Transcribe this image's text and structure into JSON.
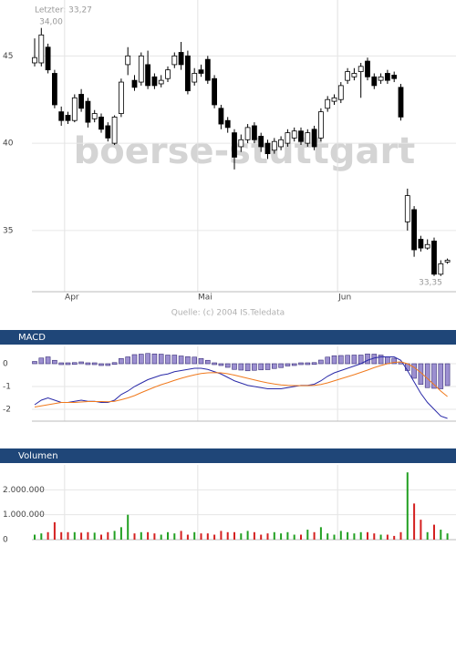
{
  "chart_data": [
    {
      "type": "candlestick",
      "last_label": "Letzter: 33,27",
      "high_label": "34,00",
      "low_label": "33,35",
      "watermark": "boerse-stuttgart",
      "source": "Quelle: (c) 2004 IS.Teledata",
      "categories": [
        null,
        null,
        null,
        null,
        null,
        "Apr",
        null,
        null,
        null,
        null,
        null,
        null,
        null,
        null,
        null,
        null,
        null,
        null,
        null,
        null,
        null,
        null,
        null,
        null,
        null,
        "Mai",
        null,
        null,
        null,
        null,
        null,
        null,
        null,
        null,
        null,
        null,
        null,
        null,
        null,
        null,
        null,
        null,
        null,
        null,
        null,
        null,
        "Jun",
        null,
        null,
        null,
        null,
        null,
        null,
        null,
        null,
        null,
        null,
        null,
        null,
        null,
        null,
        null,
        null
      ],
      "open": [
        44.6,
        44.6,
        45.5,
        44.0,
        41.8,
        41.6,
        41.3,
        42.8,
        42.4,
        41.4,
        41.5,
        41.0,
        40.0,
        41.7,
        44.5,
        43.6,
        43.5,
        44.5,
        43.8,
        43.4,
        43.7,
        44.5,
        45.2,
        45.0,
        43.5,
        44.2,
        44.8,
        43.7,
        42.0,
        41.3,
        40.6,
        39.8,
        40.2,
        41.0,
        40.4,
        40.0,
        39.6,
        39.8,
        40.0,
        40.3,
        40.7,
        40.0,
        40.8,
        40.3,
        42.0,
        42.4,
        42.5,
        43.6,
        43.8,
        44.1,
        44.7,
        43.8,
        43.6,
        44.0,
        43.9,
        43.2,
        35.5,
        36.2,
        34.5,
        34.0,
        34.4,
        32.5,
        33.2
      ],
      "high": [
        46.0,
        46.6,
        45.7,
        44.2,
        42.1,
        41.8,
        42.8,
        43.1,
        42.6,
        41.9,
        41.7,
        41.2,
        41.6,
        43.7,
        45.5,
        43.9,
        45.2,
        45.3,
        44.0,
        43.9,
        44.4,
        45.2,
        45.8,
        45.3,
        44.3,
        44.5,
        45.0,
        43.9,
        42.2,
        41.5,
        40.8,
        40.5,
        41.1,
        41.2,
        40.6,
        40.2,
        40.3,
        40.4,
        40.8,
        40.9,
        40.9,
        40.8,
        41.0,
        42.0,
        42.7,
        42.8,
        43.5,
        44.3,
        44.3,
        44.6,
        44.9,
        44.0,
        44.0,
        44.2,
        44.1,
        43.4,
        37.4,
        36.4,
        34.7,
        34.5,
        34.6,
        33.3,
        33.4
      ],
      "low": [
        44.4,
        44.4,
        44.0,
        42.0,
        41.0,
        41.1,
        41.2,
        41.8,
        40.9,
        41.2,
        40.6,
        40.1,
        39.9,
        41.5,
        43.9,
        43.0,
        43.3,
        43.1,
        43.1,
        43.2,
        43.5,
        44.3,
        44.2,
        42.8,
        43.3,
        43.8,
        43.4,
        42.0,
        40.8,
        40.6,
        38.5,
        39.5,
        40.0,
        40.0,
        39.5,
        39.1,
        39.4,
        39.6,
        39.8,
        40.1,
        39.9,
        39.8,
        39.6,
        40.1,
        41.8,
        42.2,
        42.3,
        43.4,
        43.6,
        42.6,
        43.6,
        43.1,
        43.4,
        43.4,
        43.5,
        41.3,
        35.0,
        33.5,
        33.8,
        33.9,
        32.4,
        32.4,
        33.1
      ],
      "close": [
        44.9,
        46.2,
        44.2,
        42.2,
        41.3,
        41.3,
        42.6,
        42.0,
        41.2,
        41.7,
        40.8,
        40.3,
        41.5,
        43.5,
        45.0,
        43.2,
        45.0,
        43.3,
        43.3,
        43.6,
        44.2,
        45.0,
        44.5,
        43.0,
        44.0,
        44.0,
        43.6,
        42.2,
        41.1,
        40.9,
        39.2,
        40.2,
        40.9,
        40.2,
        39.8,
        39.4,
        40.1,
        40.2,
        40.6,
        40.7,
        40.1,
        40.6,
        39.8,
        41.8,
        42.5,
        42.6,
        43.3,
        44.1,
        44.0,
        44.4,
        43.8,
        43.3,
        43.8,
        43.6,
        43.7,
        41.5,
        37.0,
        33.9,
        34.0,
        34.2,
        32.5,
        33.1,
        33.3
      ],
      "up_color": "#ffffff",
      "down_color": "#000000",
      "ylim": [
        31.5,
        48.2
      ],
      "yticks": [
        35,
        40,
        45
      ],
      "grid": true
    },
    {
      "type": "macd",
      "title": "MACD",
      "series": [
        {
          "kind": "bar",
          "color": "#9c8fd0",
          "values": [
            0.1,
            0.25,
            0.3,
            0.15,
            0,
            0,
            0.05,
            0.08,
            0.01,
            0.01,
            -0.04,
            -0.03,
            0.05,
            0.23,
            0.3,
            0.4,
            0.42,
            0.45,
            0.43,
            0.42,
            0.38,
            0.38,
            0.34,
            0.31,
            0.29,
            0.23,
            0.15,
            0.04,
            -0.05,
            -0.16,
            -0.25,
            -0.28,
            -0.31,
            -0.29,
            -0.27,
            -0.26,
            -0.21,
            -0.17,
            -0.1,
            -0.04,
            0.01,
            0.01,
            0.05,
            0.16,
            0.29,
            0.35,
            0.36,
            0.37,
            0.38,
            0.38,
            0.43,
            0.42,
            0.38,
            0.3,
            0.24,
            0.07,
            -0.3,
            -0.64,
            -0.91,
            -1.05,
            -1.08,
            -1.1,
            -0.96
          ]
        },
        {
          "kind": "line",
          "color": "#2a2aa8",
          "values": [
            -1.8,
            -1.6,
            -1.5,
            -1.6,
            -1.7,
            -1.7,
            -1.65,
            -1.6,
            -1.65,
            -1.65,
            -1.7,
            -1.7,
            -1.6,
            -1.35,
            -1.2,
            -1.0,
            -0.85,
            -0.7,
            -0.6,
            -0.5,
            -0.45,
            -0.35,
            -0.3,
            -0.25,
            -0.2,
            -0.2,
            -0.25,
            -0.35,
            -0.45,
            -0.6,
            -0.75,
            -0.85,
            -0.95,
            -1.0,
            -1.05,
            -1.1,
            -1.1,
            -1.1,
            -1.05,
            -1.0,
            -0.95,
            -0.95,
            -0.9,
            -0.75,
            -0.55,
            -0.4,
            -0.3,
            -0.2,
            -0.1,
            0.0,
            0.15,
            0.25,
            0.3,
            0.3,
            0.3,
            0.15,
            -0.3,
            -0.8,
            -1.3,
            -1.7,
            -2.0,
            -2.3,
            -2.4
          ]
        },
        {
          "kind": "line",
          "color": "#f07a1e",
          "values": [
            -1.9,
            -1.85,
            -1.8,
            -1.75,
            -1.7,
            -1.7,
            -1.7,
            -1.68,
            -1.66,
            -1.66,
            -1.66,
            -1.67,
            -1.65,
            -1.58,
            -1.5,
            -1.4,
            -1.27,
            -1.15,
            -1.03,
            -0.92,
            -0.83,
            -0.73,
            -0.64,
            -0.56,
            -0.49,
            -0.43,
            -0.4,
            -0.39,
            -0.4,
            -0.44,
            -0.5,
            -0.57,
            -0.64,
            -0.71,
            -0.78,
            -0.84,
            -0.89,
            -0.93,
            -0.95,
            -0.96,
            -0.96,
            -0.96,
            -0.95,
            -0.91,
            -0.84,
            -0.75,
            -0.66,
            -0.57,
            -0.48,
            -0.38,
            -0.28,
            -0.17,
            -0.08,
            0.0,
            0.06,
            0.08,
            0.0,
            -0.16,
            -0.39,
            -0.65,
            -0.92,
            -1.2,
            -1.44
          ]
        }
      ],
      "ylim": [
        -2.52,
        0.76
      ],
      "yticks": [
        0,
        -1,
        -2
      ],
      "grid": true
    },
    {
      "type": "volume",
      "title": "Volumen",
      "values": [
        200000,
        250000,
        300000,
        700000,
        300000,
        300000,
        300000,
        280000,
        300000,
        280000,
        200000,
        300000,
        350000,
        500000,
        1000000,
        250000,
        300000,
        300000,
        250000,
        200000,
        300000,
        250000,
        350000,
        200000,
        300000,
        250000,
        250000,
        200000,
        350000,
        300000,
        300000,
        250000,
        350000,
        300000,
        200000,
        250000,
        300000,
        250000,
        300000,
        200000,
        200000,
        400000,
        300000,
        500000,
        250000,
        200000,
        350000,
        300000,
        250000,
        300000,
        300000,
        250000,
        200000,
        200000,
        150000,
        300000,
        2700000,
        1450000,
        800000,
        300000,
        600000,
        400000,
        250000
      ],
      "up_color": "#22a022",
      "down_color": "#d42020",
      "ylim": [
        0,
        3000000
      ],
      "yticks": [
        0,
        {
          "value": 1000000,
          "label": "1.000.000"
        },
        {
          "value": 2000000,
          "label": "2.000.000"
        }
      ],
      "grid": true
    }
  ]
}
